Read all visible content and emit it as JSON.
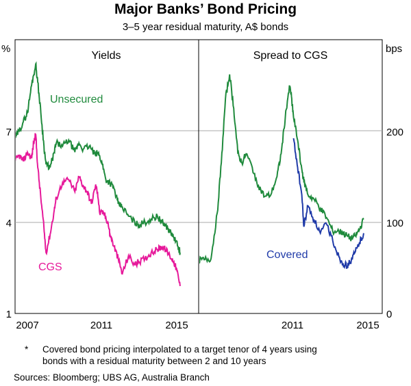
{
  "title": "Major Banks’ Bond Pricing",
  "subtitle": "3–5 year residual maturity, A$ bonds",
  "footnote": {
    "marker": "*",
    "line1": "Covered bond pricing interpolated to a target tenor of 4 years using",
    "line2": "bonds with a residual maturity between 2 and 10 years"
  },
  "sources": "Sources:   Bloomberg; UBS AG, Australia Branch",
  "colors": {
    "unsecured": "#1f8a3c",
    "cgs": "#e6199a",
    "covered": "#1f3aa8",
    "grid": "#a8a8a8"
  },
  "chart_data": [
    {
      "type": "line",
      "panel_title": "Yields",
      "y_unit": "%",
      "ylim": [
        1,
        10
      ],
      "yticks": [
        1,
        4,
        7
      ],
      "xlim": [
        2007,
        2015.9
      ],
      "xticks": [
        2007,
        2011,
        2015
      ],
      "series": [
        {
          "name": "Unsecured",
          "color": "#1f8a3c",
          "x": [
            2007.0,
            2007.2,
            2007.4,
            2007.6,
            2007.8,
            2008.0,
            2008.1,
            2008.25,
            2008.4,
            2008.5,
            2008.7,
            2008.9,
            2009.0,
            2009.3,
            2009.6,
            2009.9,
            2010.1,
            2010.3,
            2010.6,
            2010.9,
            2011.0,
            2011.2,
            2011.4,
            2011.6,
            2011.8,
            2012.0,
            2012.2,
            2012.5,
            2012.8,
            2013.0,
            2013.3,
            2013.6,
            2013.9,
            2014.1,
            2014.3,
            2014.5,
            2014.7,
            2014.9,
            2015.0
          ],
          "y": [
            6.8,
            7.0,
            7.3,
            7.6,
            8.5,
            9.2,
            8.6,
            7.6,
            6.5,
            5.9,
            5.8,
            6.3,
            6.6,
            6.5,
            6.7,
            6.3,
            6.6,
            6.4,
            6.5,
            6.2,
            6.3,
            6.0,
            5.4,
            5.3,
            5.1,
            4.6,
            4.5,
            4.2,
            4.0,
            3.9,
            4.0,
            4.1,
            4.2,
            4.0,
            3.9,
            3.7,
            3.5,
            3.2,
            3.0
          ]
        },
        {
          "name": "CGS",
          "color": "#e6199a",
          "x": [
            2007.0,
            2007.2,
            2007.4,
            2007.6,
            2007.8,
            2007.9,
            2008.0,
            2008.1,
            2008.25,
            2008.4,
            2008.5,
            2008.7,
            2008.9,
            2009.0,
            2009.3,
            2009.6,
            2009.9,
            2010.1,
            2010.3,
            2010.5,
            2010.7,
            2010.9,
            2011.0,
            2011.1,
            2011.3,
            2011.5,
            2011.6,
            2011.8,
            2012.0,
            2012.2,
            2012.5,
            2012.8,
            2013.0,
            2013.3,
            2013.6,
            2013.9,
            2014.1,
            2014.3,
            2014.5,
            2014.7,
            2014.85,
            2015.0
          ],
          "y": [
            6.0,
            6.2,
            6.0,
            6.3,
            6.1,
            6.6,
            6.9,
            5.8,
            4.8,
            3.8,
            3.0,
            3.6,
            4.4,
            4.8,
            5.3,
            5.4,
            5.0,
            5.5,
            5.2,
            5.0,
            4.6,
            5.2,
            5.0,
            4.3,
            4.3,
            4.0,
            3.6,
            3.2,
            2.8,
            2.3,
            2.9,
            2.6,
            2.7,
            2.8,
            3.0,
            3.1,
            3.2,
            3.1,
            2.9,
            2.7,
            2.4,
            1.9
          ]
        }
      ],
      "annotations": [
        "Unsecured",
        "CGS"
      ]
    },
    {
      "type": "line",
      "panel_title": "Spread to CGS",
      "y_unit": "bps",
      "ylim": [
        0,
        300
      ],
      "yticks": [
        0,
        100,
        200
      ],
      "xlim": [
        2007,
        2015.9
      ],
      "xticks": [
        2011,
        2015
      ],
      "series": [
        {
          "name": "Unsecured",
          "color": "#1f8a3c",
          "x": [
            2007.0,
            2007.3,
            2007.6,
            2007.9,
            2008.1,
            2008.3,
            2008.5,
            2008.7,
            2008.9,
            2009.1,
            2009.3,
            2009.6,
            2009.9,
            2010.2,
            2010.5,
            2010.8,
            2011.0,
            2011.2,
            2011.4,
            2011.5,
            2011.6,
            2011.8,
            2012.0,
            2012.1,
            2012.3,
            2012.6,
            2012.9,
            2013.2,
            2013.5,
            2013.8,
            2014.0,
            2014.2,
            2014.4,
            2014.6,
            2014.8,
            2015.0
          ],
          "y": [
            58,
            59,
            60,
            110,
            165,
            235,
            262,
            225,
            175,
            165,
            175,
            160,
            140,
            128,
            130,
            150,
            175,
            215,
            250,
            238,
            215,
            190,
            158,
            145,
            130,
            125,
            115,
            105,
            90,
            90,
            88,
            85,
            82,
            85,
            92,
            103
          ]
        },
        {
          "name": "Covered",
          "color": "#1f3aa8",
          "x": [
            2011.6,
            2011.8,
            2012.0,
            2012.1,
            2012.3,
            2012.6,
            2012.9,
            2013.2,
            2013.5,
            2013.8,
            2014.0,
            2014.2,
            2014.4,
            2014.6,
            2014.8,
            2015.0
          ],
          "y": [
            192,
            160,
            130,
            95,
            118,
            102,
            88,
            98,
            80,
            62,
            55,
            52,
            58,
            68,
            78,
            88
          ]
        }
      ],
      "annotations": [
        "Covered"
      ]
    }
  ],
  "panels": {
    "left_title": "Yields",
    "right_title": "Spread to CGS",
    "left_unit": "%",
    "right_unit": "bps",
    "left_ticks": [
      "1",
      "4",
      "7"
    ],
    "right_ticks": [
      "0",
      "100",
      "200"
    ],
    "x_ticks": [
      "2007",
      "2011",
      "2015",
      "2011",
      "2015"
    ],
    "label_unsecured": "Unsecured",
    "label_cgs": "CGS",
    "label_covered": "Covered"
  }
}
